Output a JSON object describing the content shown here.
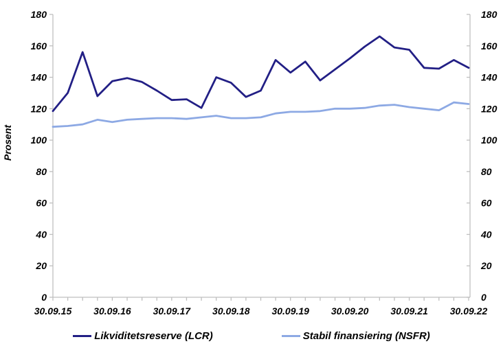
{
  "chart_data": {
    "type": "line",
    "title": "",
    "ylabel": "Prosent",
    "ylim": [
      0,
      180
    ],
    "yticks": [
      0,
      20,
      40,
      60,
      80,
      100,
      120,
      140,
      160,
      180
    ],
    "y_axis_sides": "both",
    "grid": false,
    "legend_position": "bottom",
    "x_tick_labels": [
      "30.09.15",
      "30.09.16",
      "30.09.17",
      "30.09.18",
      "30.09.19",
      "30.09.20",
      "30.09.21",
      "30.09.22"
    ],
    "minor_ticks_between_labels": 4,
    "n_points": 29,
    "x_frequency": "quarterly",
    "axis_color": "#BFBFBF",
    "text_color": "#000000",
    "series": [
      {
        "name": "Likviditetsreserve (LCR)",
        "color": "#221F85",
        "values": [
          118.5,
          130,
          156,
          128,
          137.5,
          139.5,
          137,
          131.5,
          125.5,
          126,
          120.5,
          140,
          136.5,
          127.5,
          131.5,
          151,
          143,
          150,
          138,
          145,
          152,
          159.5,
          166,
          159,
          157.5,
          146,
          145.5,
          151,
          146
        ]
      },
      {
        "name": "Stabil finansiering (NSFR)",
        "color": "#8DA9E4",
        "values": [
          108.5,
          109,
          110,
          113,
          111.5,
          113,
          113.5,
          114,
          114,
          113.5,
          114.5,
          115.5,
          114,
          114,
          114.5,
          117,
          118,
          118,
          118.5,
          120,
          120,
          120.5,
          122,
          122.5,
          121,
          120,
          119,
          124,
          123
        ]
      }
    ]
  }
}
